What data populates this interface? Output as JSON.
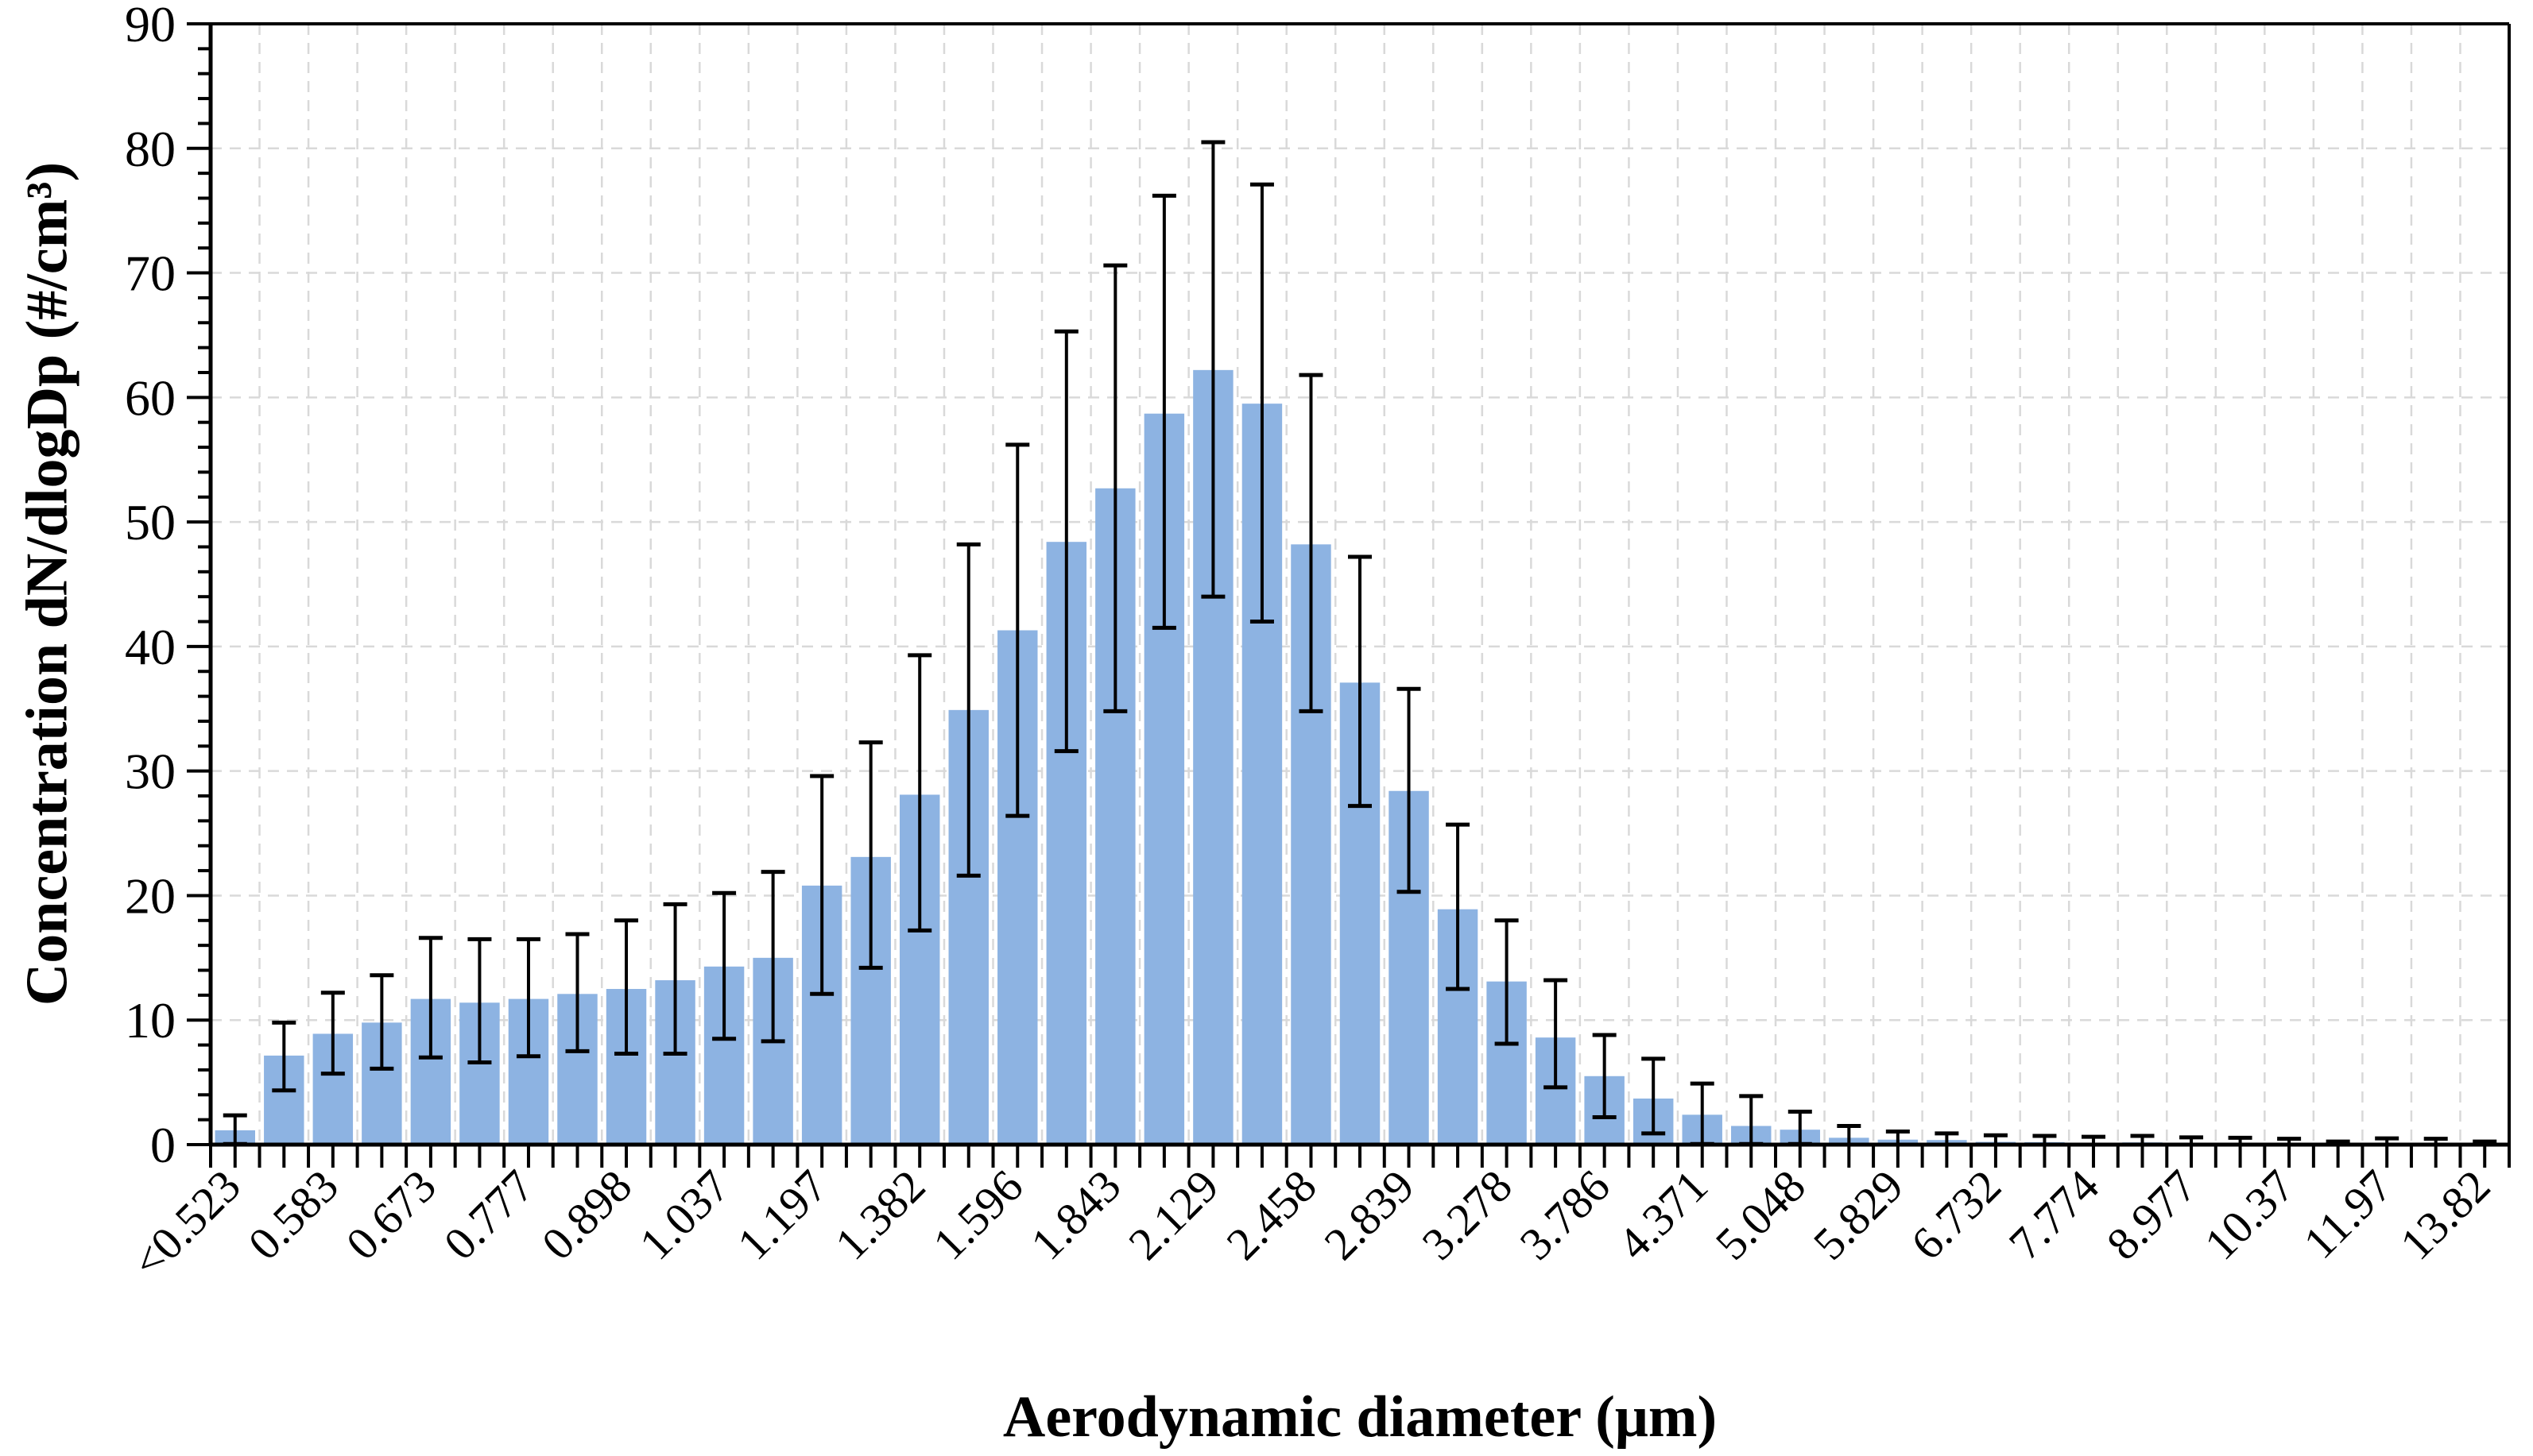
{
  "figure": {
    "background": "#FFFFFF"
  },
  "styles": {
    "bar_fill": "#8DB3E2",
    "grid_color": "#D9D9D9",
    "axis_color": "#000000",
    "text_color": "#000000"
  },
  "chart_data": {
    "type": "bar",
    "title": "",
    "xlabel": "Aerodynamic diameter (μm)",
    "ylabel": "Concentration dN/dlogDp (#/cm³)",
    "ylim": [
      0,
      90
    ],
    "y_major_step": 10,
    "y_minor_step": 2,
    "legend": "none",
    "grid": "dashed light-gray horizontal major lines and vertical category-boundary lines",
    "error_bars": "vertical black whiskers with end caps on every bar",
    "x_tick_labels_visible": [
      "<0.523",
      "0.583",
      "0.673",
      "0.777",
      "0.898",
      "1.037",
      "1.197",
      "1.382",
      "1.596",
      "1.843",
      "2.129",
      "2.458",
      "2.839",
      "3.278",
      "3.786",
      "4.371",
      "5.048",
      "5.829",
      "6.732",
      "7.774",
      "8.977",
      "10.37",
      "11.97",
      "13.82"
    ],
    "label_every_nth_category": 2,
    "bars": [
      {
        "label": "<0.523",
        "value": 1.15,
        "low": 0.05,
        "high": 2.35
      },
      {
        "label": "",
        "value": 7.15,
        "low": 4.35,
        "high": 9.8
      },
      {
        "label": "0.583",
        "value": 8.9,
        "low": 5.7,
        "high": 12.2
      },
      {
        "label": "",
        "value": 9.8,
        "low": 6.1,
        "high": 13.6
      },
      {
        "label": "0.673",
        "value": 11.7,
        "low": 7.0,
        "high": 16.6
      },
      {
        "label": "",
        "value": 11.4,
        "low": 6.6,
        "high": 16.5
      },
      {
        "label": "0.777",
        "value": 11.7,
        "low": 7.1,
        "high": 16.5
      },
      {
        "label": "",
        "value": 12.1,
        "low": 7.5,
        "high": 16.9
      },
      {
        "label": "0.898",
        "value": 12.5,
        "low": 7.3,
        "high": 18.0
      },
      {
        "label": "",
        "value": 13.2,
        "low": 7.3,
        "high": 19.3
      },
      {
        "label": "1.037",
        "value": 14.3,
        "low": 8.5,
        "high": 20.2
      },
      {
        "label": "",
        "value": 15.0,
        "low": 8.3,
        "high": 21.9
      },
      {
        "label": "1.197",
        "value": 20.8,
        "low": 12.1,
        "high": 29.6
      },
      {
        "label": "",
        "value": 23.1,
        "low": 14.2,
        "high": 32.3
      },
      {
        "label": "1.382",
        "value": 28.1,
        "low": 17.2,
        "high": 39.3
      },
      {
        "label": "",
        "value": 34.9,
        "low": 21.6,
        "high": 48.2
      },
      {
        "label": "1.596",
        "value": 41.3,
        "low": 26.4,
        "high": 56.2
      },
      {
        "label": "",
        "value": 48.4,
        "low": 31.6,
        "high": 65.3
      },
      {
        "label": "1.843",
        "value": 52.7,
        "low": 34.8,
        "high": 70.6
      },
      {
        "label": "",
        "value": 58.7,
        "low": 41.5,
        "high": 76.2
      },
      {
        "label": "2.129",
        "value": 62.2,
        "low": 44.0,
        "high": 80.5
      },
      {
        "label": "",
        "value": 59.5,
        "low": 42.0,
        "high": 77.1
      },
      {
        "label": "2.458",
        "value": 48.2,
        "low": 34.8,
        "high": 61.8
      },
      {
        "label": "",
        "value": 37.1,
        "low": 27.2,
        "high": 47.2
      },
      {
        "label": "2.839",
        "value": 28.4,
        "low": 20.3,
        "high": 36.6
      },
      {
        "label": "",
        "value": 18.9,
        "low": 12.5,
        "high": 25.7
      },
      {
        "label": "3.278",
        "value": 13.1,
        "low": 8.1,
        "high": 18.0
      },
      {
        "label": "",
        "value": 8.6,
        "low": 4.6,
        "high": 13.2
      },
      {
        "label": "3.786",
        "value": 5.5,
        "low": 2.2,
        "high": 8.8
      },
      {
        "label": "",
        "value": 3.7,
        "low": 0.9,
        "high": 6.9
      },
      {
        "label": "4.371",
        "value": 2.4,
        "low": 0.05,
        "high": 4.9
      },
      {
        "label": "",
        "value": 1.5,
        "low": 0.05,
        "high": 3.9
      },
      {
        "label": "5.048",
        "value": 1.2,
        "low": 0.05,
        "high": 2.65
      },
      {
        "label": "",
        "value": 0.55,
        "low": 0,
        "high": 1.5
      },
      {
        "label": "5.829",
        "value": 0.4,
        "low": 0,
        "high": 1.05
      },
      {
        "label": "",
        "value": 0.37,
        "low": 0,
        "high": 0.9
      },
      {
        "label": "6.732",
        "value": 0.22,
        "low": 0,
        "high": 0.75
      },
      {
        "label": "",
        "value": 0.2,
        "low": 0,
        "high": 0.7
      },
      {
        "label": "7.774",
        "value": 0.15,
        "low": 0,
        "high": 0.63
      },
      {
        "label": "",
        "value": 0.18,
        "low": 0,
        "high": 0.7
      },
      {
        "label": "8.977",
        "value": 0.08,
        "low": 0,
        "high": 0.58
      },
      {
        "label": "",
        "value": 0.07,
        "low": 0,
        "high": 0.55
      },
      {
        "label": "10.37",
        "value": 0.06,
        "low": 0,
        "high": 0.47
      },
      {
        "label": "",
        "value": 0.05,
        "low": 0,
        "high": 0.25
      },
      {
        "label": "11.97",
        "value": 0.06,
        "low": 0,
        "high": 0.5
      },
      {
        "label": "",
        "value": 0.05,
        "low": 0,
        "high": 0.47
      },
      {
        "label": "13.82",
        "value": 0.05,
        "low": 0,
        "high": 0.25
      }
    ]
  }
}
